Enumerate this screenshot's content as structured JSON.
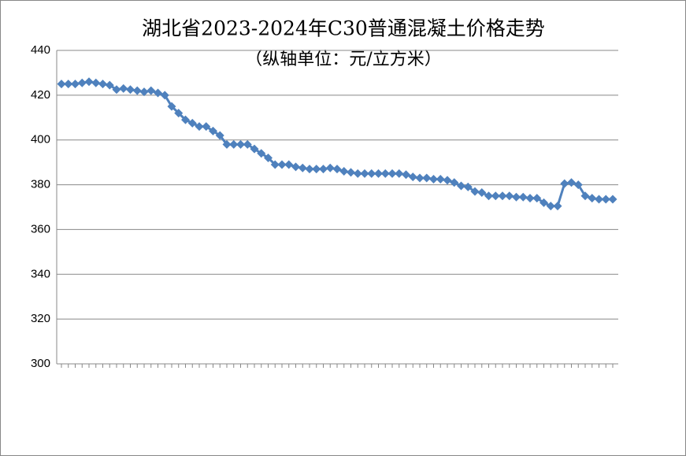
{
  "chart_data": {
    "type": "line",
    "title": "湖北省2023-2024年C30普通混凝土价格走势",
    "subtitle": "（纵轴单位：元/立方米）",
    "categories": [
      null,
      null,
      null,
      null,
      null,
      null,
      null,
      null,
      null,
      null,
      null,
      null,
      null,
      null,
      null,
      null,
      null,
      null,
      null,
      null,
      null,
      null,
      null,
      null,
      null,
      null,
      null,
      null,
      null,
      null,
      null,
      null,
      null,
      null,
      null,
      null,
      null,
      null,
      null,
      null,
      null,
      null,
      null,
      null,
      null,
      null,
      null,
      null,
      null,
      null,
      null,
      null,
      null,
      null,
      null,
      null,
      null,
      null,
      null,
      null,
      null,
      null,
      null,
      null,
      null,
      null,
      null,
      null,
      null,
      null,
      null,
      null,
      null,
      null,
      null,
      null,
      null,
      null,
      null,
      null,
      null
    ],
    "series": [
      {
        "name": "C30",
        "color": "#4f81bd",
        "values": [
          425,
          425,
          425,
          425.5,
          426,
          425.5,
          425,
          424.5,
          422.5,
          423,
          422.5,
          422,
          421.5,
          422,
          421,
          420,
          415,
          412,
          409,
          407.5,
          406,
          406,
          404,
          402,
          398,
          398,
          398,
          398,
          396,
          394,
          392,
          389,
          389,
          389,
          388,
          387.5,
          387,
          387,
          387,
          387.5,
          387,
          386,
          385.5,
          385,
          385,
          385,
          385,
          385,
          385,
          385,
          384.5,
          383.5,
          383,
          383,
          382.5,
          382.5,
          382,
          381,
          379.5,
          379,
          377,
          376.5,
          375,
          375,
          375,
          375,
          374.5,
          374.5,
          374,
          374,
          372,
          370.5,
          370.5,
          380.5,
          381,
          380,
          375,
          374,
          373.5,
          373.5,
          373.5
        ]
      }
    ],
    "ylim": [
      300,
      440
    ],
    "yticks": [
      300,
      320,
      340,
      360,
      380,
      400,
      420,
      440
    ],
    "grid": true
  }
}
